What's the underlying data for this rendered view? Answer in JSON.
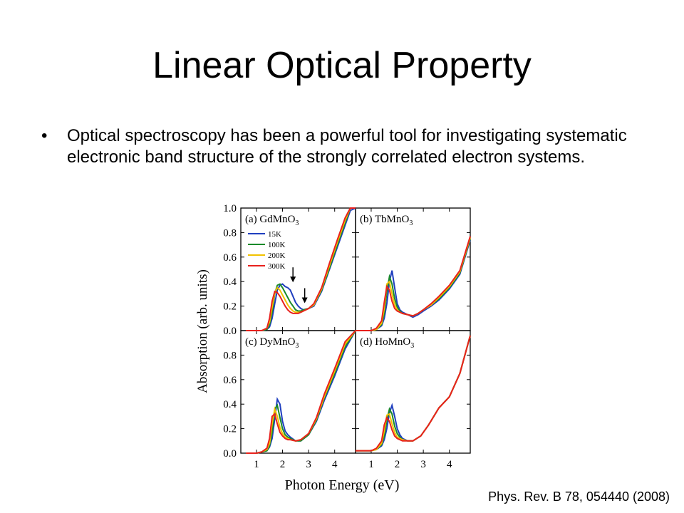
{
  "slide": {
    "title": "Linear Optical Property",
    "bullet": "Optical spectroscopy has been a powerful tool for investigating systematic electronic band structure of the strongly correlated electron systems.",
    "citation": "Phys. Rev. B 78, 054440 (2008)"
  },
  "chart_data": {
    "type": "line",
    "xlabel": "Photon Energy (eV)",
    "ylabel": "Absorption (arb. units)",
    "xlim": [
      0.4,
      4.8
    ],
    "ylim": [
      0.0,
      1.0
    ],
    "xticks": [
      1,
      2,
      3,
      4
    ],
    "yticks": [
      "0.0",
      "0.2",
      "0.4",
      "0.6",
      "0.8",
      "1.0"
    ],
    "grid": false,
    "legend": {
      "panel": "a",
      "placement": "top-left",
      "entries": [
        {
          "name": "15K",
          "color": "#1f3fbf"
        },
        {
          "name": "100K",
          "color": "#1a8a2a"
        },
        {
          "name": "200K",
          "color": "#f2c200"
        },
        {
          "name": "300K",
          "color": "#e8211d"
        }
      ]
    },
    "panels": [
      {
        "id": "a",
        "label_prefix": "(a) GdMnO",
        "label_sub": "3",
        "arrows": [
          {
            "x": 2.4,
            "y": 0.4
          },
          {
            "x": 2.85,
            "y": 0.23
          }
        ],
        "series": [
          {
            "name": "15K",
            "color": "#1f3fbf",
            "x": [
              0.6,
              1.0,
              1.2,
              1.4,
              1.5,
              1.6,
              1.7,
              1.8,
              1.9,
              2.0,
              2.1,
              2.2,
              2.3,
              2.4,
              2.5,
              2.6,
              2.7,
              2.8,
              3.0,
              3.2,
              3.5,
              3.8,
              4.1,
              4.4,
              4.6,
              4.8
            ],
            "y": [
              0.0,
              0.0,
              0.0,
              0.01,
              0.03,
              0.1,
              0.22,
              0.33,
              0.37,
              0.38,
              0.36,
              0.35,
              0.33,
              0.28,
              0.23,
              0.2,
              0.18,
              0.17,
              0.18,
              0.2,
              0.32,
              0.5,
              0.68,
              0.86,
              0.98,
              1.0
            ]
          },
          {
            "name": "100K",
            "color": "#1a8a2a",
            "x": [
              0.6,
              1.0,
              1.2,
              1.4,
              1.5,
              1.6,
              1.7,
              1.8,
              1.9,
              2.0,
              2.1,
              2.2,
              2.3,
              2.4,
              2.5,
              2.6,
              2.7,
              2.8,
              3.0,
              3.2,
              3.5,
              3.8,
              4.1,
              4.4,
              4.6,
              4.8
            ],
            "y": [
              0.0,
              0.0,
              0.0,
              0.01,
              0.05,
              0.15,
              0.3,
              0.37,
              0.38,
              0.35,
              0.31,
              0.27,
              0.23,
              0.2,
              0.17,
              0.16,
              0.16,
              0.17,
              0.18,
              0.21,
              0.33,
              0.51,
              0.7,
              0.88,
              1.0,
              1.0
            ]
          },
          {
            "name": "200K",
            "color": "#f2c200",
            "x": [
              0.6,
              1.0,
              1.2,
              1.4,
              1.5,
              1.6,
              1.7,
              1.8,
              1.9,
              2.0,
              2.1,
              2.2,
              2.3,
              2.4,
              2.5,
              2.6,
              2.7,
              2.8,
              3.0,
              3.2,
              3.5,
              3.8,
              4.1,
              4.4,
              4.6,
              4.8
            ],
            "y": [
              0.0,
              0.0,
              0.0,
              0.02,
              0.07,
              0.19,
              0.31,
              0.35,
              0.33,
              0.29,
              0.25,
              0.21,
              0.18,
              0.16,
              0.15,
              0.15,
              0.15,
              0.16,
              0.18,
              0.21,
              0.34,
              0.53,
              0.72,
              0.9,
              1.0,
              1.0
            ]
          },
          {
            "name": "300K",
            "color": "#e8211d",
            "x": [
              0.6,
              1.0,
              1.2,
              1.4,
              1.5,
              1.6,
              1.7,
              1.8,
              1.9,
              2.0,
              2.1,
              2.2,
              2.3,
              2.4,
              2.5,
              2.6,
              2.7,
              2.8,
              3.0,
              3.2,
              3.5,
              3.8,
              4.1,
              4.4,
              4.6,
              4.8
            ],
            "y": [
              0.0,
              0.0,
              0.0,
              0.02,
              0.1,
              0.24,
              0.32,
              0.31,
              0.28,
              0.24,
              0.2,
              0.17,
              0.15,
              0.14,
              0.14,
              0.14,
              0.15,
              0.16,
              0.18,
              0.22,
              0.35,
              0.55,
              0.74,
              0.92,
              1.0,
              1.0
            ]
          }
        ]
      },
      {
        "id": "b",
        "label_prefix": "(b) TbMnO",
        "label_sub": "3",
        "series": [
          {
            "name": "15K",
            "color": "#1f3fbf",
            "x": [
              0.4,
              0.8,
              1.0,
              1.2,
              1.4,
              1.5,
              1.6,
              1.7,
              1.8,
              1.9,
              2.0,
              2.1,
              2.2,
              2.4,
              2.6,
              2.8,
              3.0,
              3.3,
              3.6,
              4.0,
              4.4,
              4.8
            ],
            "y": [
              0.0,
              0.0,
              0.0,
              0.01,
              0.04,
              0.1,
              0.22,
              0.4,
              0.49,
              0.35,
              0.22,
              0.17,
              0.15,
              0.13,
              0.11,
              0.13,
              0.16,
              0.2,
              0.25,
              0.34,
              0.46,
              0.74
            ]
          },
          {
            "name": "100K",
            "color": "#1a8a2a",
            "x": [
              0.4,
              0.8,
              1.0,
              1.2,
              1.4,
              1.5,
              1.6,
              1.7,
              1.8,
              1.9,
              2.0,
              2.1,
              2.2,
              2.4,
              2.6,
              2.8,
              3.0,
              3.3,
              3.6,
              4.0,
              4.4,
              4.8
            ],
            "y": [
              0.0,
              0.0,
              0.0,
              0.01,
              0.05,
              0.14,
              0.32,
              0.44,
              0.38,
              0.26,
              0.19,
              0.16,
              0.14,
              0.13,
              0.12,
              0.14,
              0.17,
              0.21,
              0.26,
              0.35,
              0.47,
              0.75
            ]
          },
          {
            "name": "200K",
            "color": "#f2c200",
            "x": [
              0.4,
              0.8,
              1.0,
              1.2,
              1.4,
              1.5,
              1.6,
              1.7,
              1.8,
              1.9,
              2.0,
              2.1,
              2.2,
              2.4,
              2.6,
              2.8,
              3.0,
              3.3,
              3.6,
              4.0,
              4.4,
              4.8
            ],
            "y": [
              0.0,
              0.0,
              0.0,
              0.01,
              0.06,
              0.18,
              0.38,
              0.4,
              0.3,
              0.21,
              0.17,
              0.15,
              0.14,
              0.13,
              0.12,
              0.14,
              0.17,
              0.21,
              0.27,
              0.36,
              0.48,
              0.76
            ]
          },
          {
            "name": "300K",
            "color": "#e8211d",
            "x": [
              0.4,
              0.8,
              1.0,
              1.2,
              1.4,
              1.5,
              1.6,
              1.7,
              1.8,
              1.9,
              2.0,
              2.1,
              2.2,
              2.4,
              2.6,
              2.8,
              3.0,
              3.3,
              3.6,
              4.0,
              4.4,
              4.8
            ],
            "y": [
              0.0,
              0.0,
              0.0,
              0.02,
              0.08,
              0.23,
              0.36,
              0.33,
              0.24,
              0.18,
              0.16,
              0.15,
              0.14,
              0.13,
              0.12,
              0.14,
              0.17,
              0.22,
              0.28,
              0.37,
              0.49,
              0.77
            ]
          }
        ]
      },
      {
        "id": "c",
        "label_prefix": "(c) DyMnO",
        "label_sub": "3",
        "series": [
          {
            "name": "15K",
            "color": "#1f3fbf",
            "x": [
              0.6,
              1.0,
              1.2,
              1.4,
              1.5,
              1.6,
              1.7,
              1.8,
              1.9,
              2.0,
              2.1,
              2.2,
              2.3,
              2.5,
              2.7,
              3.0,
              3.3,
              3.6,
              4.0,
              4.4,
              4.8
            ],
            "y": [
              0.0,
              0.0,
              0.01,
              0.02,
              0.05,
              0.12,
              0.28,
              0.44,
              0.4,
              0.26,
              0.18,
              0.15,
              0.13,
              0.1,
              0.1,
              0.15,
              0.26,
              0.43,
              0.63,
              0.85,
              1.0
            ]
          },
          {
            "name": "100K",
            "color": "#1a8a2a",
            "x": [
              0.6,
              1.0,
              1.2,
              1.4,
              1.5,
              1.6,
              1.7,
              1.8,
              1.9,
              2.0,
              2.1,
              2.2,
              2.3,
              2.5,
              2.7,
              3.0,
              3.3,
              3.6,
              4.0,
              4.4,
              4.8
            ],
            "y": [
              0.0,
              0.0,
              0.01,
              0.02,
              0.06,
              0.17,
              0.36,
              0.39,
              0.29,
              0.2,
              0.15,
              0.13,
              0.12,
              0.1,
              0.1,
              0.15,
              0.27,
              0.45,
              0.65,
              0.87,
              1.0
            ]
          },
          {
            "name": "200K",
            "color": "#f2c200",
            "x": [
              0.6,
              1.0,
              1.2,
              1.4,
              1.5,
              1.6,
              1.7,
              1.8,
              1.9,
              2.0,
              2.1,
              2.2,
              2.3,
              2.5,
              2.7,
              3.0,
              3.3,
              3.6,
              4.0,
              4.4,
              4.8
            ],
            "y": [
              0.0,
              0.0,
              0.01,
              0.03,
              0.08,
              0.24,
              0.36,
              0.3,
              0.21,
              0.16,
              0.13,
              0.12,
              0.11,
              0.1,
              0.11,
              0.16,
              0.28,
              0.46,
              0.67,
              0.89,
              1.0
            ]
          },
          {
            "name": "300K",
            "color": "#e8211d",
            "x": [
              0.6,
              1.0,
              1.2,
              1.4,
              1.5,
              1.6,
              1.7,
              1.8,
              1.9,
              2.0,
              2.1,
              2.2,
              2.3,
              2.5,
              2.7,
              3.0,
              3.3,
              3.6,
              4.0,
              4.4,
              4.8
            ],
            "y": [
              0.0,
              0.0,
              0.01,
              0.04,
              0.12,
              0.3,
              0.32,
              0.24,
              0.17,
              0.14,
              0.12,
              0.11,
              0.11,
              0.1,
              0.11,
              0.16,
              0.29,
              0.48,
              0.69,
              0.91,
              1.0
            ]
          }
        ]
      },
      {
        "id": "d",
        "label_prefix": "(d) HoMnO",
        "label_sub": "3",
        "series": [
          {
            "name": "15K",
            "color": "#1f3fbf",
            "x": [
              0.4,
              0.8,
              1.0,
              1.2,
              1.4,
              1.5,
              1.6,
              1.7,
              1.8,
              1.9,
              2.0,
              2.1,
              2.2,
              2.4,
              2.6,
              2.9,
              3.2,
              3.6,
              4.0,
              4.4,
              4.8
            ],
            "y": [
              0.02,
              0.02,
              0.02,
              0.03,
              0.06,
              0.11,
              0.2,
              0.33,
              0.39,
              0.3,
              0.2,
              0.15,
              0.12,
              0.1,
              0.1,
              0.14,
              0.23,
              0.37,
              0.46,
              0.65,
              0.96
            ]
          },
          {
            "name": "100K",
            "color": "#1a8a2a",
            "x": [
              0.4,
              0.8,
              1.0,
              1.2,
              1.4,
              1.5,
              1.6,
              1.7,
              1.8,
              1.9,
              2.0,
              2.1,
              2.2,
              2.4,
              2.6,
              2.9,
              3.2,
              3.6,
              4.0,
              4.4,
              4.8
            ],
            "y": [
              0.02,
              0.02,
              0.02,
              0.03,
              0.07,
              0.14,
              0.27,
              0.36,
              0.32,
              0.22,
              0.16,
              0.13,
              0.11,
              0.1,
              0.1,
              0.14,
              0.23,
              0.37,
              0.46,
              0.65,
              0.96
            ]
          },
          {
            "name": "200K",
            "color": "#f2c200",
            "x": [
              0.4,
              0.8,
              1.0,
              1.2,
              1.4,
              1.5,
              1.6,
              1.7,
              1.8,
              1.9,
              2.0,
              2.1,
              2.2,
              2.4,
              2.6,
              2.9,
              3.2,
              3.6,
              4.0,
              4.4,
              4.8
            ],
            "y": [
              0.02,
              0.02,
              0.02,
              0.03,
              0.08,
              0.18,
              0.31,
              0.32,
              0.24,
              0.17,
              0.13,
              0.12,
              0.11,
              0.1,
              0.1,
              0.14,
              0.23,
              0.37,
              0.46,
              0.65,
              0.96
            ]
          },
          {
            "name": "300K",
            "color": "#e8211d",
            "x": [
              0.4,
              0.8,
              1.0,
              1.2,
              1.4,
              1.5,
              1.6,
              1.7,
              1.8,
              1.9,
              2.0,
              2.1,
              2.2,
              2.4,
              2.6,
              2.9,
              3.2,
              3.6,
              4.0,
              4.4,
              4.8
            ],
            "y": [
              0.02,
              0.02,
              0.02,
              0.04,
              0.1,
              0.23,
              0.29,
              0.26,
              0.19,
              0.14,
              0.12,
              0.11,
              0.1,
              0.1,
              0.1,
              0.14,
              0.23,
              0.37,
              0.46,
              0.65,
              0.96
            ]
          }
        ]
      }
    ]
  }
}
